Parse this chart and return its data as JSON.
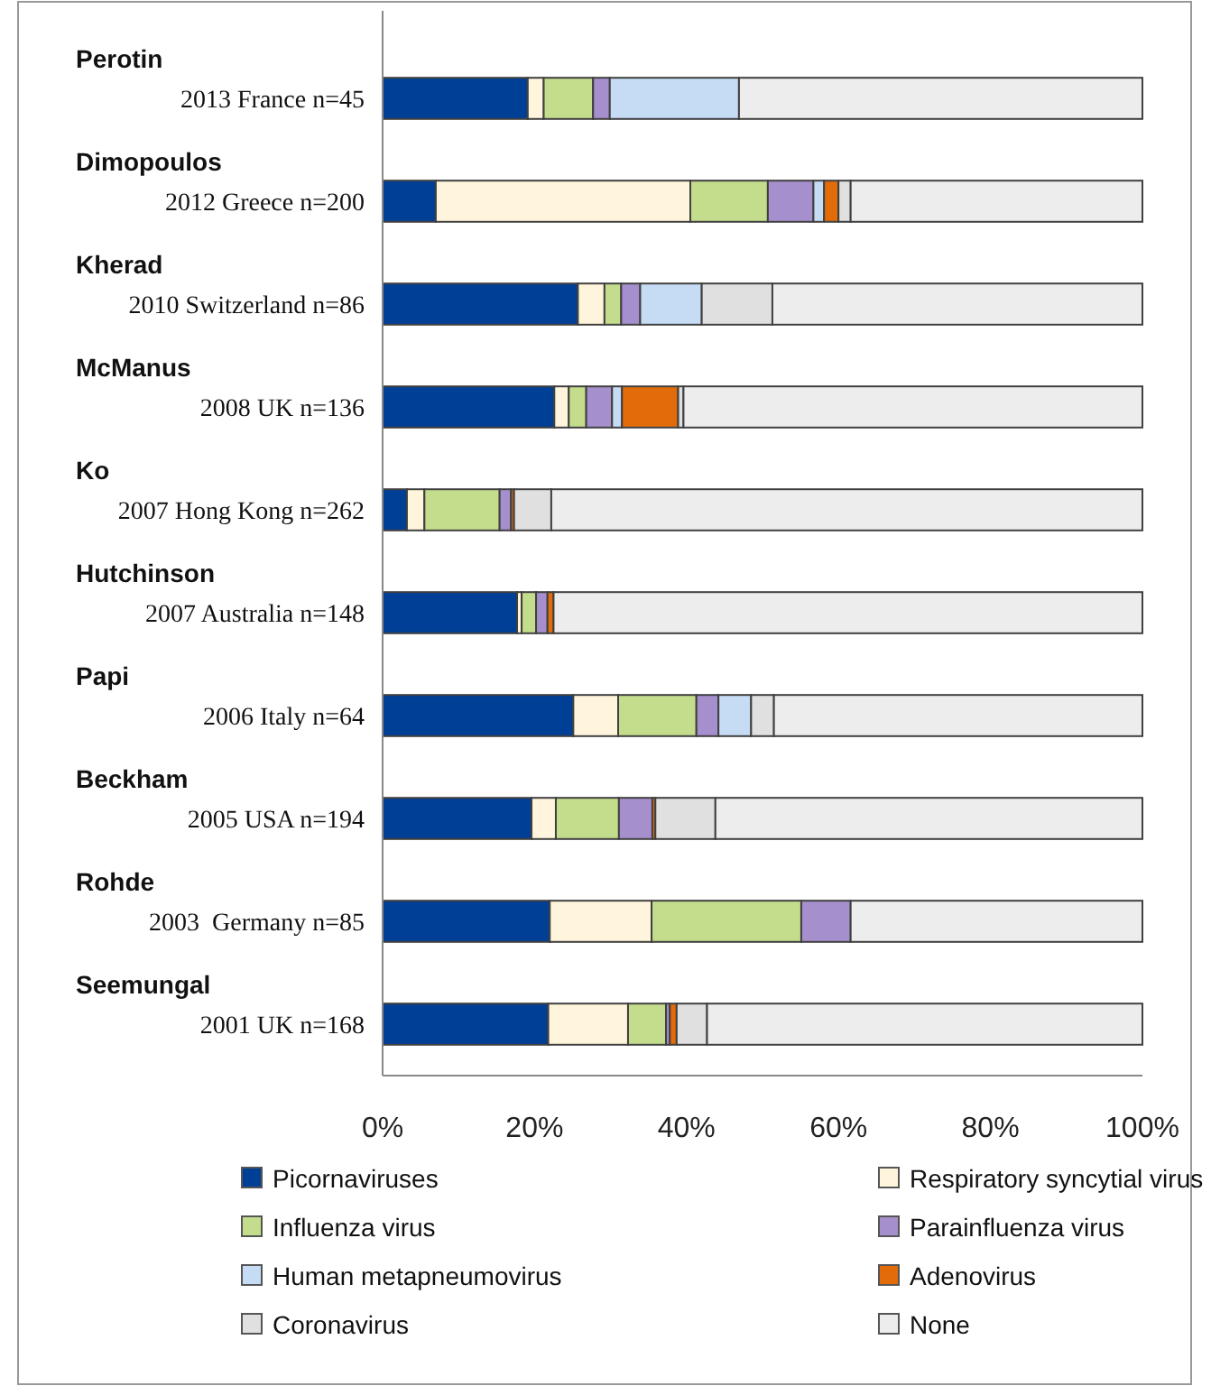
{
  "chart_data": {
    "type": "bar",
    "orientation": "horizontal",
    "stacked": true,
    "categories": [
      "Perotin\n2013 France n=45",
      "Dimopoulos\n2012 Greece n=200",
      "Kherad\n2010 Switzerland n=86",
      "McManus\n2008 UK n=136",
      "Ko\n2007 Hong Kong n=262",
      "Hutchinson\n2007 Australia n=148",
      "Papi\n2006 Italy n=64",
      "Beckham\n2005 USA n=194",
      "Rohde\n2003  Germany n=85",
      "Seemungal\n2001 UK n=168"
    ],
    "series": [
      {
        "name": "Picornaviruses",
        "color": "#003f96",
        "values": [
          19.1,
          7.0,
          25.7,
          22.6,
          3.2,
          17.7,
          25.1,
          19.6,
          22.0,
          21.8
        ]
      },
      {
        "name": "Respiratory syncytial virus",
        "color": "#fff5dc",
        "values": [
          2.1,
          33.5,
          3.5,
          1.9,
          2.3,
          0.6,
          5.9,
          3.2,
          13.4,
          10.5
        ]
      },
      {
        "name": "Influenza virus",
        "color": "#c3dd8c",
        "values": [
          6.5,
          10.2,
          2.2,
          2.3,
          9.9,
          1.9,
          10.3,
          8.3,
          19.7,
          5.0
        ]
      },
      {
        "name": "Parainfluenza virus",
        "color": "#a68fcd",
        "values": [
          2.2,
          6.0,
          2.5,
          3.4,
          1.5,
          1.5,
          2.9,
          4.4,
          6.5,
          0.5
        ]
      },
      {
        "name": "Human metapneumovirus",
        "color": "#c6dcf5",
        "values": [
          17.0,
          1.4,
          8.1,
          1.3,
          0,
          0,
          4.3,
          0,
          0,
          0
        ]
      },
      {
        "name": "Adenovirus",
        "color": "#e36c0a",
        "values": [
          0,
          1.9,
          0,
          7.4,
          0.4,
          0.8,
          0,
          0.4,
          0,
          0.9
        ]
      },
      {
        "name": "Coronavirus",
        "color": "#e0e0e0",
        "values": [
          0,
          1.6,
          9.3,
          0.7,
          4.9,
          0,
          3.0,
          7.9,
          0,
          4.0
        ]
      },
      {
        "name": "None",
        "color": "#ededed",
        "values": [
          53.1,
          38.4,
          48.7,
          60.4,
          77.8,
          77.5,
          48.5,
          56.2,
          38.4,
          57.3
        ]
      }
    ],
    "xlim": [
      0,
      100
    ],
    "xticks": [
      {
        "value": 0,
        "label": "0%"
      },
      {
        "value": 20,
        "label": "20%"
      },
      {
        "value": 40,
        "label": "40%"
      },
      {
        "value": 60,
        "label": "60%"
      },
      {
        "value": 80,
        "label": "80%"
      },
      {
        "value": 100,
        "label": "100%"
      }
    ],
    "grid": false,
    "legend": "bottom"
  }
}
